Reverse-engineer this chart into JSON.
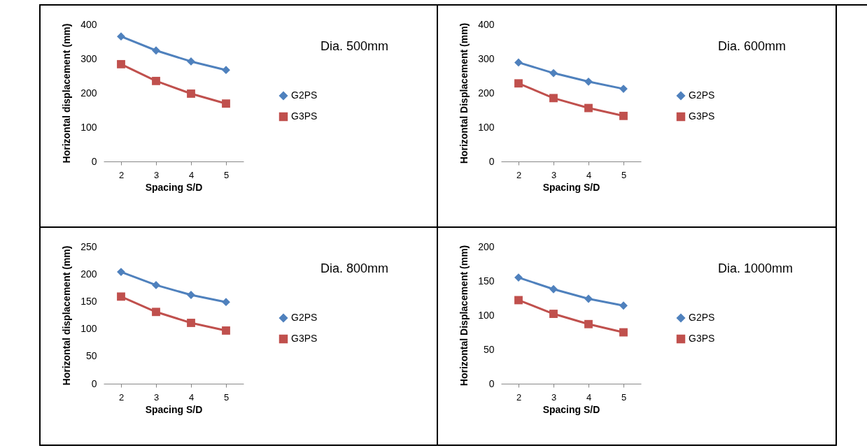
{
  "chart_data": [
    {
      "type": "line",
      "xlabel": "Spacing S/D",
      "ylabel": "Horizontal displacement (mm)",
      "categories": [
        "2",
        "3",
        "4",
        "5"
      ],
      "ylim": [
        0,
        400
      ],
      "yticks": [
        0,
        100,
        200,
        300,
        400
      ],
      "grid": false,
      "legend": "right",
      "annotations": [
        "Dia. 500mm"
      ],
      "series": [
        {
          "name": "G2PS",
          "color": "#4f81bd",
          "marker": "diamond",
          "values": [
            365,
            324,
            292,
            267
          ]
        },
        {
          "name": "G3PS",
          "color": "#c0504d",
          "marker": "square",
          "values": [
            284,
            235,
            198,
            169
          ]
        }
      ]
    },
    {
      "type": "line",
      "xlabel": "Spacing S/D",
      "ylabel": "Horizontal Displacement (mm)",
      "categories": [
        "2",
        "3",
        "4",
        "5"
      ],
      "ylim": [
        0,
        400
      ],
      "yticks": [
        0,
        100,
        200,
        300,
        400
      ],
      "grid": false,
      "legend": "right",
      "annotations": [
        "Dia. 600mm"
      ],
      "series": [
        {
          "name": "G2PS",
          "color": "#4f81bd",
          "marker": "diamond",
          "values": [
            289,
            258,
            233,
            212
          ]
        },
        {
          "name": "G3PS",
          "color": "#c0504d",
          "marker": "square",
          "values": [
            228,
            185,
            156,
            133
          ]
        }
      ]
    },
    {
      "type": "line",
      "xlabel": "Spacing S/D",
      "ylabel": "Horizontal displacement (mm)",
      "categories": [
        "2",
        "3",
        "4",
        "5"
      ],
      "ylim": [
        0,
        250
      ],
      "yticks": [
        0,
        50,
        100,
        150,
        200,
        250
      ],
      "grid": false,
      "legend": "right",
      "annotations": [
        "Dia. 800mm"
      ],
      "series": [
        {
          "name": "G2PS",
          "color": "#4f81bd",
          "marker": "diamond",
          "values": [
            204,
            180,
            162,
            149
          ]
        },
        {
          "name": "G3PS",
          "color": "#c0504d",
          "marker": "square",
          "values": [
            159,
            131,
            111,
            97
          ]
        }
      ]
    },
    {
      "type": "line",
      "xlabel": "Spacing S/D",
      "ylabel": "Horizontal Displacement (mm)",
      "categories": [
        "2",
        "3",
        "4",
        "5"
      ],
      "ylim": [
        0,
        200
      ],
      "yticks": [
        0,
        50,
        100,
        150,
        200
      ],
      "grid": false,
      "legend": "right",
      "annotations": [
        "Dia. 1000mm"
      ],
      "series": [
        {
          "name": "G2PS",
          "color": "#4f81bd",
          "marker": "diamond",
          "values": [
            155,
            138,
            124,
            114
          ]
        },
        {
          "name": "G3PS",
          "color": "#c0504d",
          "marker": "square",
          "values": [
            122,
            102,
            87,
            75
          ]
        }
      ]
    }
  ]
}
